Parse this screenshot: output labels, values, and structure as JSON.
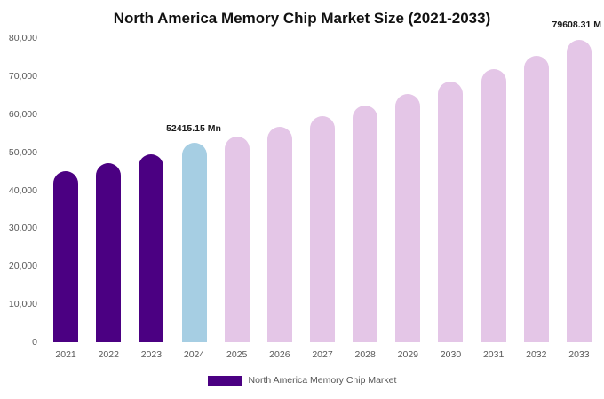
{
  "chart_data": {
    "type": "bar",
    "title": "North America Memory Chip Market Size (2021-2033)",
    "categories": [
      "2021",
      "2022",
      "2023",
      "2024",
      "2025",
      "2026",
      "2027",
      "2028",
      "2029",
      "2030",
      "2031",
      "2032",
      "2033"
    ],
    "values": [
      45000,
      47100,
      49450,
      52415.15,
      54150,
      56700,
      59450,
      62350,
      65350,
      68550,
      71850,
      75350,
      79608.31
    ],
    "point_colors": [
      "#4B0082",
      "#4B0082",
      "#4B0082",
      "#A6CEE3",
      "#E4C6E7",
      "#E4C6E7",
      "#E4C6E7",
      "#E4C6E7",
      "#E4C6E7",
      "#E4C6E7",
      "#E4C6E7",
      "#E4C6E7",
      "#E4C6E7"
    ],
    "xlabel": "",
    "ylabel": "",
    "ylim": [
      0,
      80000
    ],
    "ytick_labels": [
      "0",
      "10,000",
      "20,000",
      "30,000",
      "40,000",
      "50,000",
      "60,000",
      "70,000",
      "80,000"
    ],
    "grid": false,
    "legend_position": "bottom"
  },
  "annotations": {
    "bar_2024_label": "52415.15 Mn",
    "bar_2033_label": "79608.31 M"
  },
  "legend": {
    "swatch_color": "#4B0082",
    "label": "North America Memory Chip Market"
  }
}
